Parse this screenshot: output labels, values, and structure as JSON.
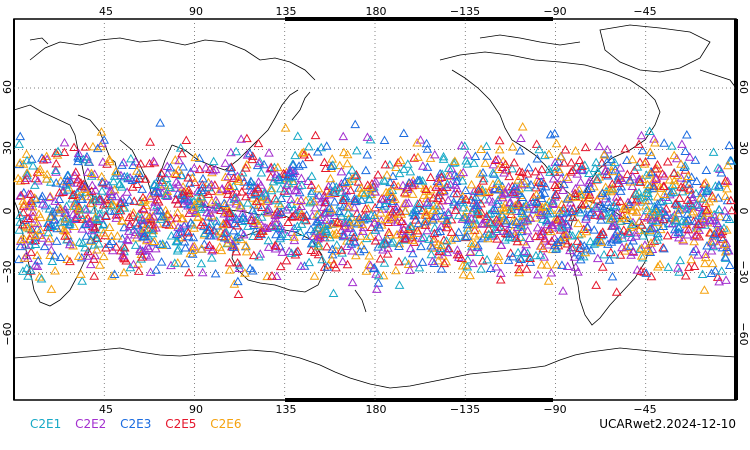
{
  "map": {
    "lon_top_labels": [
      "45",
      "90",
      "135",
      "180",
      "−135",
      "−90",
      "−45"
    ],
    "lon_bottom_labels": [
      "45",
      "90",
      "135",
      "180",
      "−135",
      "−90",
      "−45"
    ],
    "lat_labels": [
      "60",
      "30",
      "0",
      "−30",
      "−60"
    ],
    "land_color": "#ffffff",
    "coast_color": "#000000",
    "grid_style": "dotted"
  },
  "legend": {
    "items": [
      {
        "label": "C2E1",
        "color": "#16a9c6"
      },
      {
        "label": "C2E2",
        "color": "#a32fcf"
      },
      {
        "label": "C2E3",
        "color": "#1a6be0"
      },
      {
        "label": "C2E5",
        "color": "#e5162c"
      },
      {
        "label": "C2E6",
        "color": "#f5a20e"
      }
    ]
  },
  "footer": {
    "label": "UCARwet2.2024-12-10"
  },
  "markers": {
    "shape": "triangle-outline",
    "lat_band": [
      -45,
      45
    ]
  }
}
